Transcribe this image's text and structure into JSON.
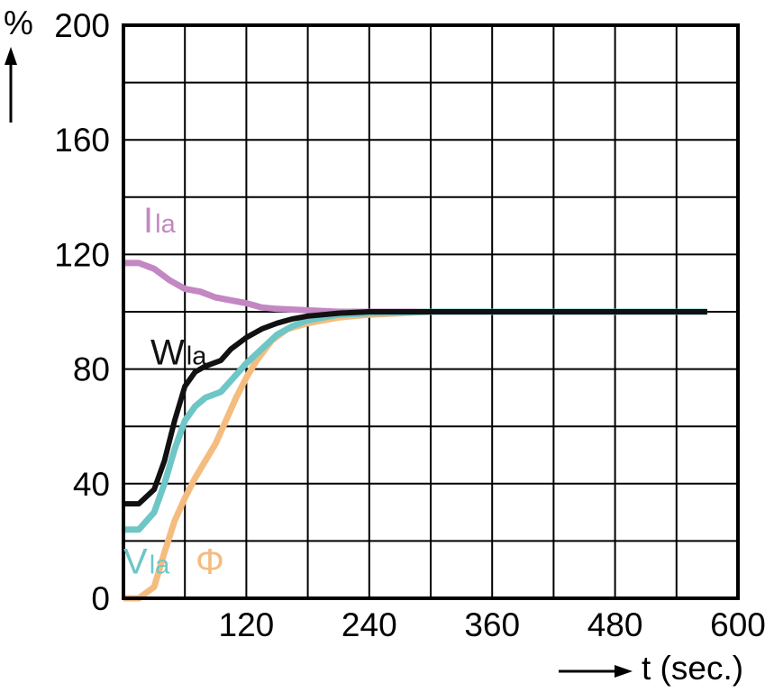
{
  "chart_data": {
    "type": "line",
    "title": "",
    "xlabel": "t (sec.)",
    "ylabel": "%",
    "xlim": [
      0,
      600
    ],
    "ylim": [
      0,
      200
    ],
    "x_ticks": [
      120,
      240,
      360,
      480,
      600
    ],
    "y_ticks": [
      0,
      40,
      80,
      120,
      160,
      200
    ],
    "x_grid_step": 60,
    "y_grid_step": 20,
    "grid": true,
    "series": [
      {
        "name": "Ila",
        "color": "#c387c3",
        "points": [
          [
            0,
            117
          ],
          [
            15,
            117
          ],
          [
            30,
            115
          ],
          [
            45,
            111
          ],
          [
            60,
            108
          ],
          [
            75,
            107
          ],
          [
            90,
            105
          ],
          [
            105,
            104
          ],
          [
            120,
            103
          ],
          [
            135,
            101.5
          ],
          [
            150,
            101
          ],
          [
            180,
            100.5
          ],
          [
            210,
            100
          ],
          [
            240,
            100
          ],
          [
            300,
            100
          ],
          [
            360,
            100
          ],
          [
            480,
            100
          ],
          [
            570,
            100
          ]
        ]
      },
      {
        "name": "Wla",
        "color": "#111111",
        "points": [
          [
            0,
            33
          ],
          [
            15,
            33
          ],
          [
            30,
            38
          ],
          [
            40,
            48
          ],
          [
            50,
            62
          ],
          [
            60,
            74
          ],
          [
            70,
            79
          ],
          [
            80,
            81
          ],
          [
            95,
            83
          ],
          [
            105,
            87
          ],
          [
            120,
            91
          ],
          [
            135,
            94
          ],
          [
            150,
            96
          ],
          [
            165,
            97.5
          ],
          [
            180,
            98.5
          ],
          [
            210,
            99.5
          ],
          [
            240,
            100
          ],
          [
            300,
            100
          ],
          [
            360,
            100
          ],
          [
            480,
            100
          ],
          [
            570,
            100
          ]
        ]
      },
      {
        "name": "Vla",
        "color": "#6ec6c6",
        "points": [
          [
            0,
            24
          ],
          [
            15,
            24
          ],
          [
            30,
            30
          ],
          [
            40,
            40
          ],
          [
            50,
            52
          ],
          [
            60,
            62
          ],
          [
            70,
            67
          ],
          [
            80,
            70
          ],
          [
            95,
            72
          ],
          [
            105,
            76
          ],
          [
            120,
            82
          ],
          [
            135,
            87
          ],
          [
            150,
            92
          ],
          [
            165,
            95
          ],
          [
            180,
            97
          ],
          [
            210,
            99
          ],
          [
            240,
            99.5
          ],
          [
            300,
            100
          ],
          [
            360,
            100
          ],
          [
            480,
            100
          ],
          [
            570,
            100
          ]
        ]
      },
      {
        "name": "Φ",
        "color": "#f5bc80",
        "points": [
          [
            0,
            0
          ],
          [
            15,
            0
          ],
          [
            30,
            4
          ],
          [
            40,
            16
          ],
          [
            50,
            27
          ],
          [
            60,
            35
          ],
          [
            70,
            42
          ],
          [
            80,
            48
          ],
          [
            90,
            54
          ],
          [
            100,
            62
          ],
          [
            110,
            70
          ],
          [
            120,
            77
          ],
          [
            130,
            83
          ],
          [
            145,
            90
          ],
          [
            160,
            94
          ],
          [
            180,
            96
          ],
          [
            210,
            98
          ],
          [
            240,
            99
          ],
          [
            270,
            99.5
          ],
          [
            300,
            100
          ],
          [
            360,
            100
          ],
          [
            480,
            100
          ],
          [
            570,
            100
          ]
        ]
      }
    ],
    "series_labels": [
      {
        "text": "I",
        "sub": "la",
        "series": "Ila",
        "color": "#c387c3"
      },
      {
        "text": "W",
        "sub": "la",
        "series": "Wla",
        "color": "#111111"
      },
      {
        "text": "V",
        "sub": "la",
        "series": "Vla",
        "color": "#6ec6c6"
      },
      {
        "text": "Φ",
        "sub": "",
        "series": "Φ",
        "color": "#f5bc80"
      }
    ]
  }
}
